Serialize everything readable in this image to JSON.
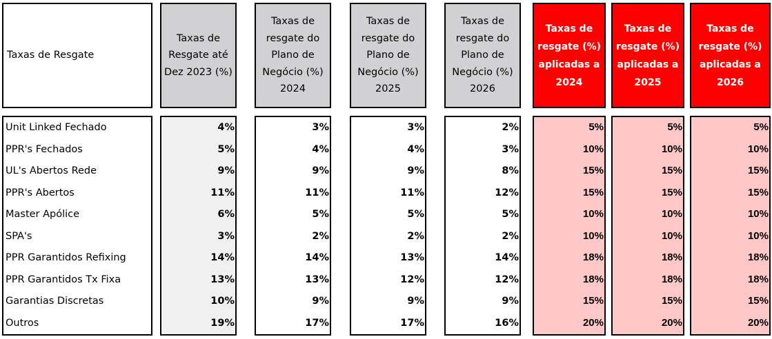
{
  "headers": {
    "row_label": "Taxas de Resgate",
    "col1": [
      "Taxas de",
      "Resgate até",
      "Dez 2023 (%)"
    ],
    "col2": [
      "Taxas de",
      "resgate do",
      "Plano de",
      "Negócio (%)",
      "2024"
    ],
    "col3": [
      "Taxas de",
      "resgate do",
      "Plano de",
      "Negócio (%)",
      "2025"
    ],
    "col4": [
      "Taxas de",
      "resgate do",
      "Plano de",
      "Negócio (%)",
      "2026"
    ],
    "col5": [
      "Taxas de",
      "resgate (%)",
      "aplicadas a",
      "2024"
    ],
    "col6": [
      "Taxas de",
      "resgate (%)",
      "aplicadas a",
      "2025"
    ],
    "col7": [
      "Taxas de",
      "resgate (%)",
      "aplicadas a",
      "2026"
    ]
  },
  "rows": [
    {
      "label": "Unit Linked Fechado",
      "v": [
        "4%",
        "3%",
        "3%",
        "2%",
        "5%",
        "5%",
        "5%"
      ]
    },
    {
      "label": "PPR's Fechados",
      "v": [
        "5%",
        "4%",
        "4%",
        "3%",
        "10%",
        "10%",
        "10%"
      ]
    },
    {
      "label": "UL's Abertos Rede",
      "v": [
        "9%",
        "9%",
        "9%",
        "8%",
        "15%",
        "15%",
        "15%"
      ]
    },
    {
      "label": "PPR's Abertos",
      "v": [
        "11%",
        "11%",
        "11%",
        "12%",
        "15%",
        "15%",
        "15%"
      ]
    },
    {
      "label": "Master Apólice",
      "v": [
        "6%",
        "5%",
        "5%",
        "5%",
        "10%",
        "10%",
        "10%"
      ]
    },
    {
      "label": "SPA's",
      "v": [
        "3%",
        "2%",
        "2%",
        "2%",
        "10%",
        "10%",
        "10%"
      ]
    },
    {
      "label": "PPR Garantidos Refixing",
      "v": [
        "14%",
        "14%",
        "13%",
        "14%",
        "18%",
        "18%",
        "18%"
      ]
    },
    {
      "label": "PPR Garantidos Tx Fixa",
      "v": [
        "13%",
        "13%",
        "12%",
        "12%",
        "18%",
        "18%",
        "18%"
      ]
    },
    {
      "label": "Garantias Discretas",
      "v": [
        "10%",
        "9%",
        "9%",
        "9%",
        "15%",
        "15%",
        "15%"
      ]
    },
    {
      "label": "Outros",
      "v": [
        "19%",
        "17%",
        "17%",
        "16%",
        "20%",
        "20%",
        "20%"
      ]
    }
  ],
  "colors": {
    "header_grey": "#d1d0d2",
    "header_red": "#ff0000",
    "body_light_grey": "#f0f0f0",
    "body_pink": "#fec8c8"
  }
}
